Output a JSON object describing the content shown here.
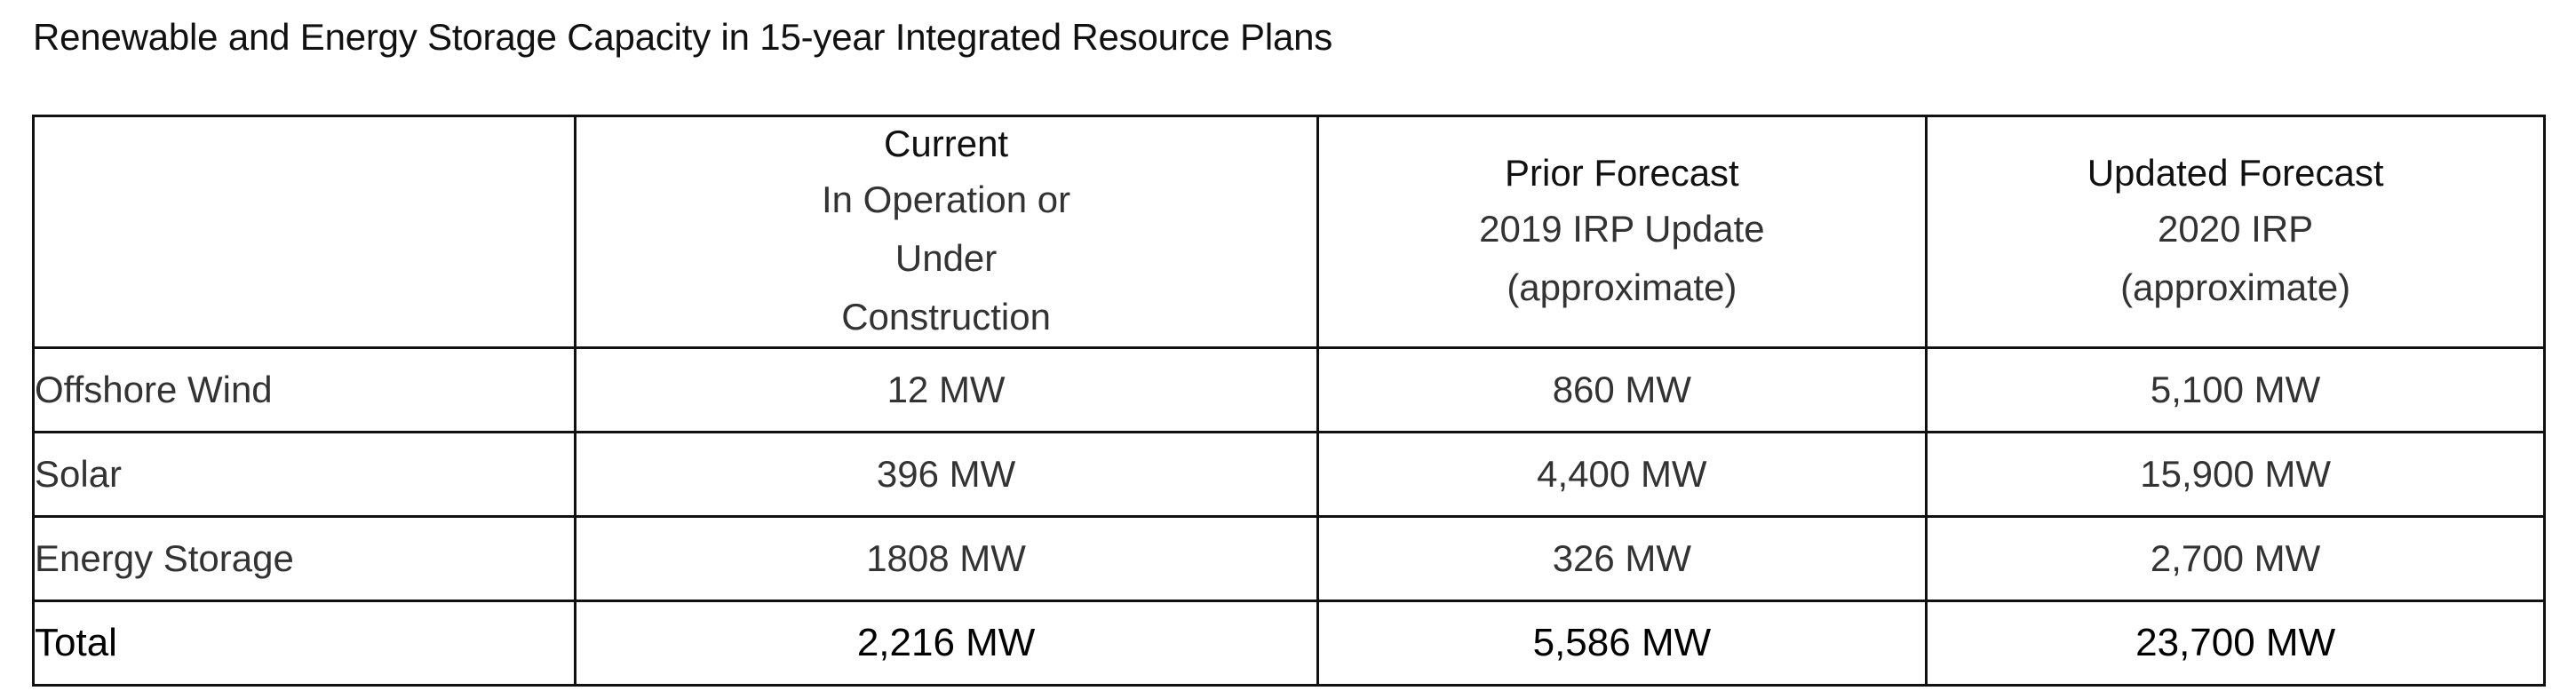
{
  "title": "Renewable and Energy Storage Capacity in 15-year Integrated Resource Plans",
  "table": {
    "headers": [
      {
        "title": "",
        "sub": ""
      },
      {
        "title": "Current",
        "sub": "In Operation or Under Construction"
      },
      {
        "title": "Prior Forecast",
        "sub": "2019 IRP Update (approximate)"
      },
      {
        "title": "Updated Forecast",
        "sub": "2020 IRP (approximate)"
      }
    ],
    "rows": [
      {
        "label": "Offshore Wind",
        "current": "12 MW",
        "prior": "860 MW",
        "updated": "5,100 MW"
      },
      {
        "label": "Solar",
        "current": "396 MW",
        "prior": "4,400 MW",
        "updated": "15,900 MW"
      },
      {
        "label": "Energy Storage",
        "current": "1808 MW",
        "prior": "326 MW",
        "updated": "2,700 MW"
      }
    ],
    "total": {
      "label": "Total",
      "current": "2,216 MW",
      "prior": "5,586 MW",
      "updated": "23,700 MW"
    }
  }
}
